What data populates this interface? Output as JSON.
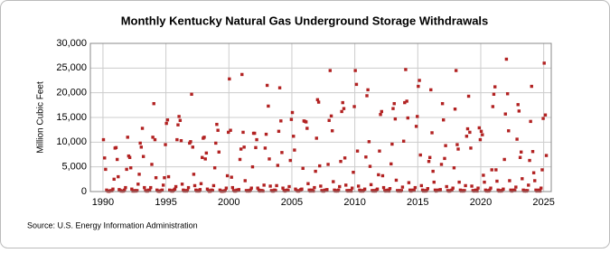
{
  "chart_data": {
    "type": "scatter",
    "title": "Monthly Kentucky Natural  Gas Underground Storage Withdrawals",
    "y_label": "Million Cubic Feet",
    "source": "Source: U.S. Energy Information Administration",
    "xlim": [
      1989,
      2025.6
    ],
    "xticks": [
      1990,
      1995,
      2000,
      2005,
      2010,
      2015,
      2020,
      2025
    ],
    "ylim": [
      0,
      30000
    ],
    "yticks": [
      {
        "value": 0,
        "label": "0"
      },
      {
        "value": 5000,
        "label": "5,000"
      },
      {
        "value": 10000,
        "label": "10,000"
      },
      {
        "value": 15000,
        "label": "15,000"
      },
      {
        "value": 20000,
        "label": "20,000"
      },
      {
        "value": 25000,
        "label": "25,000"
      },
      {
        "value": 30000,
        "label": "30,000"
      }
    ],
    "grid": true,
    "series": [
      {
        "color": "#b22222",
        "x": [
          1990.04,
          1990.13,
          1990.21,
          1990.29,
          1990.38,
          1990.46,
          1990.54,
          1990.63,
          1990.71,
          1990.79,
          1990.88,
          1990.96,
          1991.04,
          1991.13,
          1991.21,
          1991.29,
          1991.38,
          1991.46,
          1991.54,
          1991.63,
          1991.71,
          1991.79,
          1991.88,
          1991.96,
          1992.04,
          1992.13,
          1992.21,
          1992.29,
          1992.38,
          1992.46,
          1992.54,
          1992.63,
          1992.71,
          1992.79,
          1992.88,
          1992.96,
          1993.04,
          1993.13,
          1993.21,
          1993.29,
          1993.38,
          1993.46,
          1993.54,
          1993.63,
          1993.71,
          1993.79,
          1993.88,
          1993.96,
          1994.04,
          1994.13,
          1994.21,
          1994.29,
          1994.38,
          1994.46,
          1994.54,
          1994.63,
          1994.71,
          1994.79,
          1994.88,
          1994.96,
          1995.04,
          1995.13,
          1995.21,
          1995.29,
          1995.38,
          1995.46,
          1995.54,
          1995.63,
          1995.71,
          1995.79,
          1995.88,
          1995.96,
          1996.04,
          1996.13,
          1996.21,
          1996.29,
          1996.38,
          1996.46,
          1996.54,
          1996.63,
          1996.71,
          1996.79,
          1996.88,
          1996.96,
          1997.04,
          1997.13,
          1997.21,
          1997.29,
          1997.38,
          1997.46,
          1997.54,
          1997.63,
          1997.71,
          1997.79,
          1997.88,
          1997.96,
          1998.04,
          1998.13,
          1998.21,
          1998.29,
          1998.38,
          1998.46,
          1998.54,
          1998.63,
          1998.71,
          1998.79,
          1998.88,
          1998.96,
          1999.04,
          1999.13,
          1999.21,
          1999.29,
          1999.38,
          1999.46,
          1999.54,
          1999.63,
          1999.71,
          1999.79,
          1999.88,
          1999.96,
          2000.04,
          2000.13,
          2000.21,
          2000.29,
          2000.38,
          2000.46,
          2000.54,
          2000.63,
          2000.71,
          2000.79,
          2000.88,
          2000.96,
          2001.04,
          2001.13,
          2001.21,
          2001.29,
          2001.38,
          2001.46,
          2001.54,
          2001.63,
          2001.71,
          2001.79,
          2001.88,
          2001.96,
          2002.04,
          2002.13,
          2002.21,
          2002.29,
          2002.38,
          2002.46,
          2002.54,
          2002.63,
          2002.71,
          2002.79,
          2002.88,
          2002.96,
          2003.04,
          2003.13,
          2003.21,
          2003.29,
          2003.38,
          2003.46,
          2003.54,
          2003.63,
          2003.71,
          2003.79,
          2003.88,
          2003.96,
          2004.04,
          2004.13,
          2004.21,
          2004.29,
          2004.38,
          2004.46,
          2004.54,
          2004.63,
          2004.71,
          2004.79,
          2004.88,
          2004.96,
          2005.04,
          2005.13,
          2005.21,
          2005.29,
          2005.38,
          2005.46,
          2005.54,
          2005.63,
          2005.71,
          2005.79,
          2005.88,
          2005.96,
          2006.04,
          2006.13,
          2006.21,
          2006.29,
          2006.38,
          2006.46,
          2006.54,
          2006.63,
          2006.71,
          2006.79,
          2006.88,
          2006.96,
          2007.04,
          2007.13,
          2007.21,
          2007.29,
          2007.38,
          2007.46,
          2007.54,
          2007.63,
          2007.71,
          2007.79,
          2007.88,
          2007.96,
          2008.04,
          2008.13,
          2008.21,
          2008.29,
          2008.38,
          2008.46,
          2008.54,
          2008.63,
          2008.71,
          2008.79,
          2008.88,
          2008.96,
          2009.04,
          2009.13,
          2009.21,
          2009.29,
          2009.38,
          2009.46,
          2009.54,
          2009.63,
          2009.71,
          2009.79,
          2009.88,
          2009.96,
          2010.04,
          2010.13,
          2010.21,
          2010.29,
          2010.38,
          2010.46,
          2010.54,
          2010.63,
          2010.71,
          2010.79,
          2010.88,
          2010.96,
          2011.04,
          2011.13,
          2011.21,
          2011.29,
          2011.38,
          2011.46,
          2011.54,
          2011.63,
          2011.71,
          2011.79,
          2011.88,
          2011.96,
          2012.04,
          2012.13,
          2012.21,
          2012.29,
          2012.38,
          2012.46,
          2012.54,
          2012.63,
          2012.71,
          2012.79,
          2012.88,
          2012.96,
          2013.04,
          2013.13,
          2013.21,
          2013.29,
          2013.38,
          2013.46,
          2013.54,
          2013.63,
          2013.71,
          2013.79,
          2013.88,
          2013.96,
          2014.04,
          2014.13,
          2014.21,
          2014.29,
          2014.38,
          2014.46,
          2014.54,
          2014.63,
          2014.71,
          2014.79,
          2014.88,
          2014.96,
          2015.04,
          2015.13,
          2015.21,
          2015.29,
          2015.38,
          2015.46,
          2015.54,
          2015.63,
          2015.71,
          2015.79,
          2015.88,
          2015.96,
          2016.04,
          2016.13,
          2016.21,
          2016.29,
          2016.38,
          2016.46,
          2016.54,
          2016.63,
          2016.71,
          2016.79,
          2016.88,
          2016.96,
          2017.04,
          2017.13,
          2017.21,
          2017.29,
          2017.38,
          2017.46,
          2017.54,
          2017.63,
          2017.71,
          2017.79,
          2017.88,
          2017.96,
          2018.04,
          2018.13,
          2018.21,
          2018.29,
          2018.38,
          2018.46,
          2018.54,
          2018.63,
          2018.71,
          2018.79,
          2018.88,
          2018.96,
          2019.04,
          2019.13,
          2019.21,
          2019.29,
          2019.38,
          2019.46,
          2019.54,
          2019.63,
          2019.71,
          2019.79,
          2019.88,
          2019.96,
          2020.04,
          2020.13,
          2020.21,
          2020.29,
          2020.38,
          2020.46,
          2020.54,
          2020.63,
          2020.71,
          2020.79,
          2020.88,
          2020.96,
          2021.04,
          2021.13,
          2021.21,
          2021.29,
          2021.38,
          2021.46,
          2021.54,
          2021.63,
          2021.71,
          2021.79,
          2021.88,
          2021.96,
          2022.04,
          2022.13,
          2022.21,
          2022.29,
          2022.38,
          2022.46,
          2022.54,
          2022.63,
          2022.71,
          2022.79,
          2022.88,
          2022.96,
          2023.04,
          2023.13,
          2023.21,
          2023.29,
          2023.38,
          2023.46,
          2023.54,
          2023.63,
          2023.71,
          2023.79,
          2023.88,
          2023.96,
          2024.04,
          2024.13,
          2024.21,
          2024.29,
          2024.38,
          2024.46,
          2024.54,
          2024.63,
          2024.71,
          2024.79,
          2024.88,
          2024.96,
          2025.04,
          2025.13,
          2025.21
        ],
        "values": [
          10500,
          6800,
          4500,
          300,
          100,
          50,
          100,
          200,
          150,
          500,
          2500,
          8800,
          8900,
          6500,
          3000,
          400,
          200,
          100,
          100,
          100,
          300,
          800,
          4500,
          11000,
          7200,
          6900,
          4800,
          500,
          100,
          100,
          200,
          100,
          200,
          1500,
          3500,
          9800,
          9000,
          12800,
          7100,
          800,
          200,
          100,
          100,
          300,
          200,
          800,
          5500,
          11000,
          17800,
          10500,
          2800,
          300,
          100,
          50,
          100,
          200,
          300,
          1300,
          2800,
          9500,
          13800,
          14500,
          3000,
          300,
          200,
          100,
          100,
          300,
          500,
          1000,
          10500,
          13500,
          15200,
          14400,
          10300,
          1500,
          300,
          100,
          200,
          100,
          200,
          800,
          9800,
          10100,
          19700,
          9000,
          3500,
          1200,
          300,
          100,
          200,
          100,
          400,
          1600,
          6900,
          10800,
          11000,
          6600,
          7800,
          500,
          200,
          50,
          100,
          300,
          200,
          1200,
          4800,
          9800,
          13600,
          12400,
          8000,
          300,
          100,
          50,
          100,
          100,
          200,
          700,
          3200,
          12000,
          22800,
          12400,
          2900,
          800,
          200,
          100,
          100,
          300,
          200,
          400,
          6500,
          8600,
          23700,
          12000,
          9000,
          2200,
          200,
          100,
          200,
          100,
          300,
          700,
          5000,
          11800,
          11800,
          8900,
          10500,
          700,
          300,
          100,
          200,
          200,
          100,
          1300,
          8800,
          11600,
          21500,
          17300,
          6600,
          1100,
          200,
          100,
          100,
          300,
          200,
          1200,
          5300,
          12200,
          21000,
          14300,
          7900,
          700,
          200,
          100,
          200,
          300,
          200,
          1000,
          6300,
          14600,
          16000,
          11200,
          8400,
          500,
          200,
          100,
          100,
          200,
          400,
          500,
          4700,
          14300,
          14200,
          14100,
          12800,
          1600,
          300,
          100,
          300,
          200,
          100,
          800,
          4100,
          10800,
          18600,
          18100,
          5200,
          1100,
          200,
          100,
          100,
          300,
          200,
          400,
          5500,
          14400,
          24500,
          15300,
          12300,
          2000,
          300,
          100,
          200,
          100,
          300,
          1000,
          6100,
          16200,
          18000,
          16800,
          6800,
          1300,
          200,
          100,
          200,
          200,
          100,
          700,
          3900,
          17200,
          24500,
          21700,
          8200,
          1100,
          300,
          100,
          200,
          100,
          200,
          500,
          7000,
          19400,
          20600,
          10100,
          5100,
          1400,
          200,
          100,
          200,
          100,
          300,
          500,
          3400,
          8200,
          15600,
          16200,
          3200,
          800,
          200,
          100,
          200,
          300,
          100,
          600,
          5600,
          9600,
          16800,
          17800,
          14700,
          2300,
          200,
          100,
          200,
          100,
          200,
          900,
          10200,
          18000,
          24700,
          18300,
          14900,
          1800,
          300,
          100,
          200,
          300,
          200,
          800,
          13200,
          15200,
          21300,
          22500,
          7400,
          1200,
          300,
          100,
          200,
          100,
          200,
          600,
          6100,
          6900,
          20600,
          11900,
          4100,
          1900,
          300,
          100,
          200,
          300,
          200,
          400,
          5500,
          17800,
          14500,
          6700,
          9300,
          1000,
          200,
          100,
          100,
          200,
          300,
          700,
          4800,
          16700,
          24500,
          9500,
          8600,
          1900,
          300,
          100,
          200,
          100,
          200,
          1200,
          11200,
          12700,
          19300,
          12000,
          8800,
          1100,
          200,
          100,
          200,
          300,
          100,
          700,
          12900,
          10500,
          12200,
          11500,
          3300,
          1900,
          300,
          100,
          200,
          100,
          300,
          700,
          4400,
          17200,
          19700,
          21200,
          4400,
          2100,
          300,
          100,
          200,
          100,
          200,
          500,
          6500,
          15700,
          26800,
          19800,
          12300,
          2200,
          300,
          100,
          200,
          300,
          200,
          900,
          10600,
          17600,
          16300,
          6900,
          8000,
          2600,
          300,
          100,
          200,
          100,
          200,
          1300,
          6300,
          14200,
          21300,
          8100,
          3800,
          2200,
          300,
          100,
          200,
          300,
          100,
          700,
          4400,
          14800,
          26000,
          15500,
          7300
        ]
      }
    ]
  }
}
